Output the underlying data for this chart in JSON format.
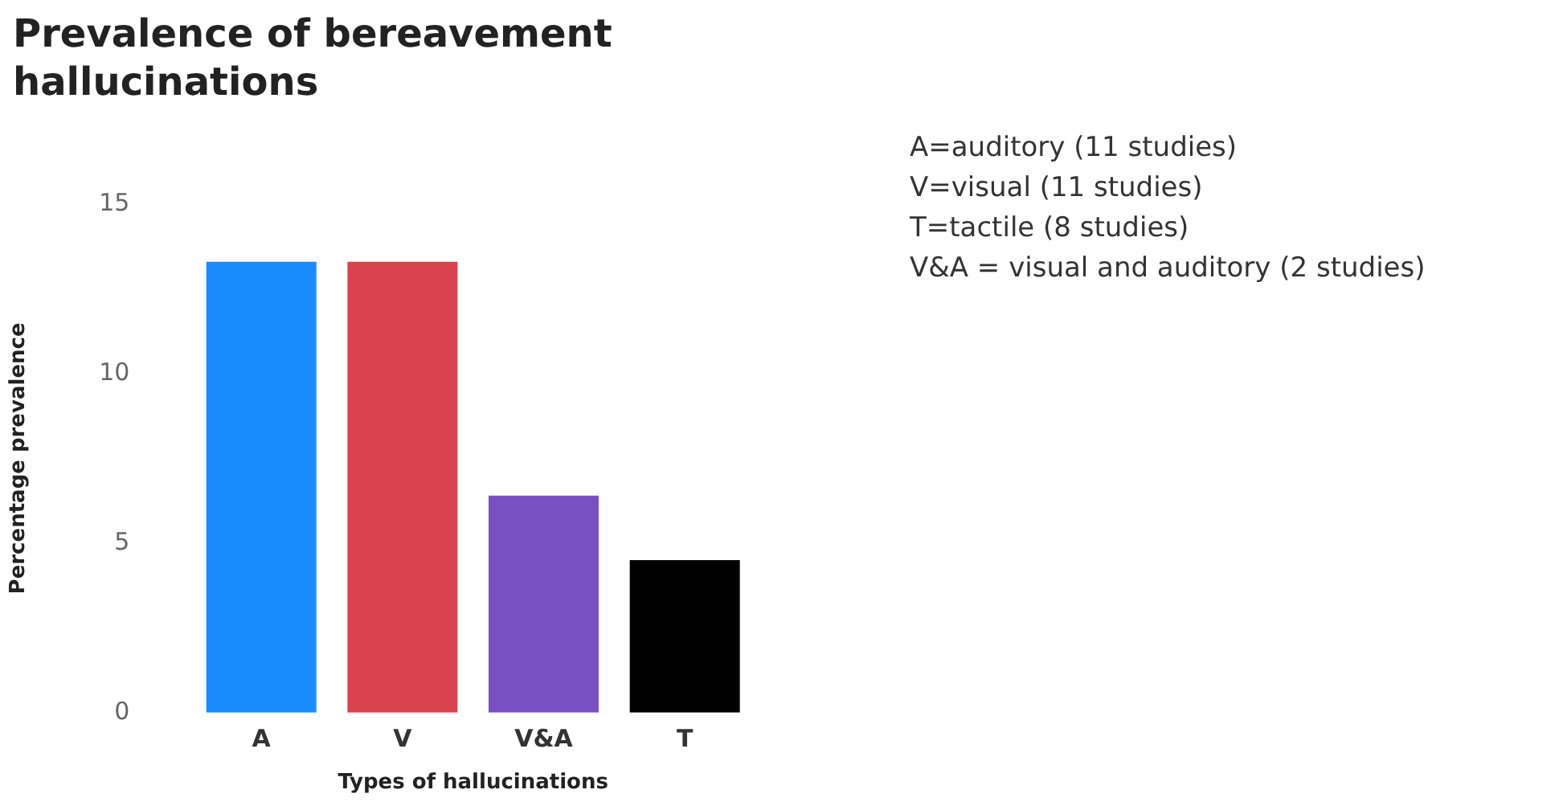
{
  "chart_data": {
    "type": "bar",
    "title": "Prevalence of bereavement hallucinations",
    "xlabel": "Types of hallucinations",
    "ylabel": "Percentage prevalence",
    "categories": [
      "A",
      "V",
      "V&A",
      "T"
    ],
    "values": [
      13.3,
      13.3,
      6.4,
      4.5
    ],
    "colors": [
      "#1a8cff",
      "#d9434f",
      "#7b4fc4",
      "#000000"
    ],
    "ylim": [
      0,
      15
    ],
    "yticks": [
      0,
      5,
      10,
      15
    ],
    "grid": false,
    "legend": false,
    "annotations": [
      "A=auditory (11 studies)",
      "V=visual (11 studies)",
      "T=tactile (8 studies)",
      "V&A = visual and auditory (2 studies)"
    ]
  }
}
